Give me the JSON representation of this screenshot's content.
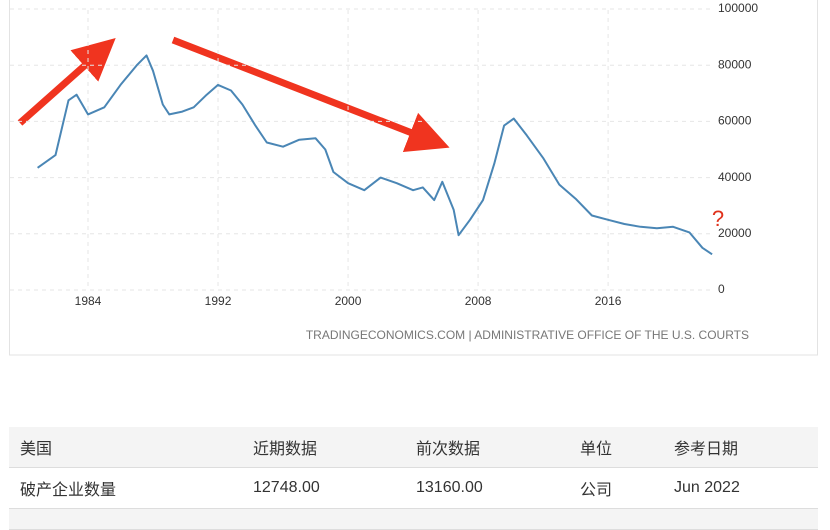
{
  "chart_data": {
    "type": "line",
    "x": [
      1980.9,
      1982,
      1982.8,
      1983.3,
      1984,
      1985,
      1986,
      1987,
      1987.6,
      1988,
      1988.6,
      1989,
      1989.8,
      1990.5,
      1991.3,
      1992,
      1992.8,
      1993.5,
      1994.3,
      1995,
      1996,
      1997,
      1998,
      1998.6,
      1999.1,
      2000,
      2001,
      2002,
      2003,
      2004,
      2004.6,
      2005.3,
      2005.8,
      2006.5,
      2006.8,
      2007.5,
      2008.3,
      2009,
      2009.6,
      2010.2,
      2011,
      2012,
      2013,
      2014,
      2015,
      2016,
      2017,
      2018,
      2019,
      2020,
      2021,
      2021.8,
      2022.4
    ],
    "series": [
      {
        "color": "#4a86b5",
        "values": [
          43500,
          48000,
          67500,
          69500,
          62500,
          65000,
          73000,
          80000,
          83500,
          78000,
          66000,
          62500,
          63500,
          65000,
          69500,
          73000,
          71000,
          66000,
          58500,
          52500,
          51000,
          53500,
          54000,
          50000,
          42000,
          38000,
          35500,
          40000,
          38000,
          35500,
          36500,
          32000,
          38500,
          28500,
          19500,
          25000,
          32000,
          45000,
          58500,
          61000,
          55000,
          47000,
          37500,
          32500,
          26500,
          25000,
          23500,
          22500,
          22000,
          22500,
          20500,
          15000,
          12700
        ]
      }
    ],
    "xlim": [
      1979.2,
      2023.5
    ],
    "xticks": [
      1984,
      1992,
      2000,
      2008,
      2016
    ],
    "ylim": [
      0,
      100000
    ],
    "yticks": [
      0,
      20000,
      40000,
      60000,
      80000,
      100000
    ],
    "grid": true,
    "annotation": "?",
    "source": "TRADINGECONOMICS.COM | ADMINISTRATIVE OFFICE OF THE U.S. COURTS"
  },
  "table": {
    "header": [
      "美国",
      "近期数据",
      "前次数据",
      "单位",
      "参考日期"
    ],
    "rows": [
      [
        "破产企业数量",
        "12748.00",
        "13160.00",
        "公司",
        "Jun 2022"
      ]
    ]
  }
}
